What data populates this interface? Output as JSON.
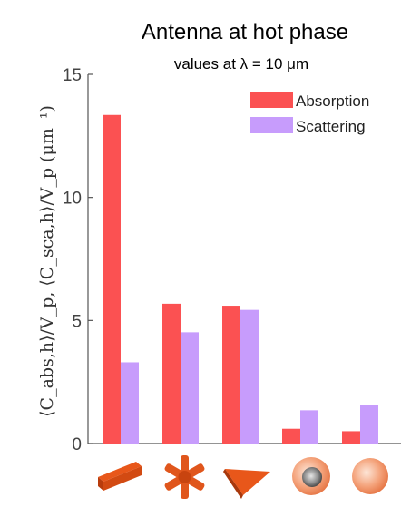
{
  "chart_data": {
    "type": "bar",
    "title": "Antenna at hot phase",
    "subtitle": "values at λ = 10 μm",
    "ylabel": "⟨C_abs,h⟩/V_p, ⟨C_sca,h⟩/V_p (μm⁻¹)",
    "xlabel": "",
    "ylim": [
      0,
      15
    ],
    "yticks": [
      0,
      5,
      10,
      15
    ],
    "grid": false,
    "legend_position": "top-right",
    "categories": [
      "rod",
      "star",
      "triangle",
      "core-shell sphere",
      "sphere"
    ],
    "series": [
      {
        "name": "Absorption",
        "color": "#fb5152",
        "values": [
          13.35,
          5.68,
          5.6,
          0.6,
          0.5
        ]
      },
      {
        "name": "Scattering",
        "color": "#c79cfc",
        "values": [
          3.3,
          4.52,
          5.43,
          1.35,
          1.57
        ]
      }
    ]
  }
}
